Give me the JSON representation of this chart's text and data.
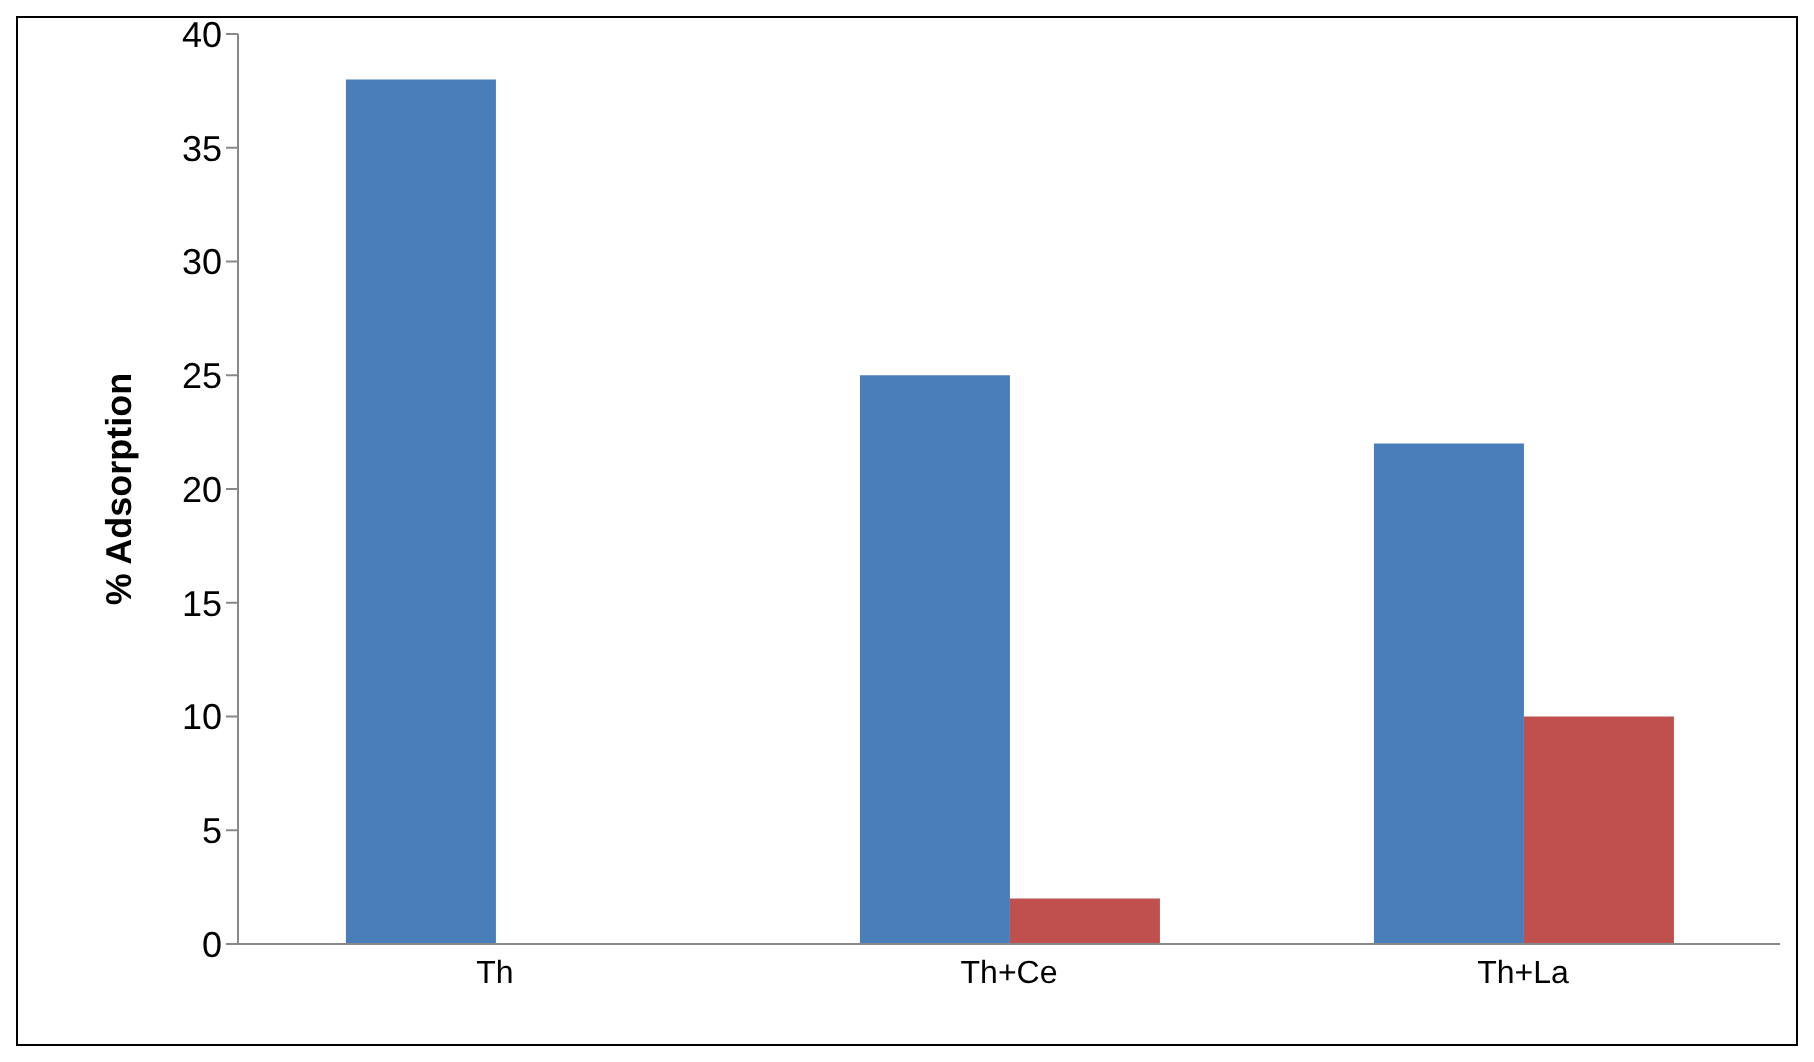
{
  "chart_data": {
    "type": "bar",
    "ylabel": "% Adsorption",
    "categories": [
      "Th",
      "Th+Ce",
      "Th+La"
    ],
    "series": [
      {
        "color": "#4a7ebb",
        "values": [
          38,
          25,
          22
        ]
      },
      {
        "color": "#c0504d",
        "values": [
          null,
          2,
          10
        ]
      }
    ],
    "ylim": [
      0,
      40
    ],
    "yticks": [
      0,
      5,
      10,
      15,
      20,
      25,
      30,
      35,
      40
    ],
    "grid": false,
    "legend": false
  }
}
